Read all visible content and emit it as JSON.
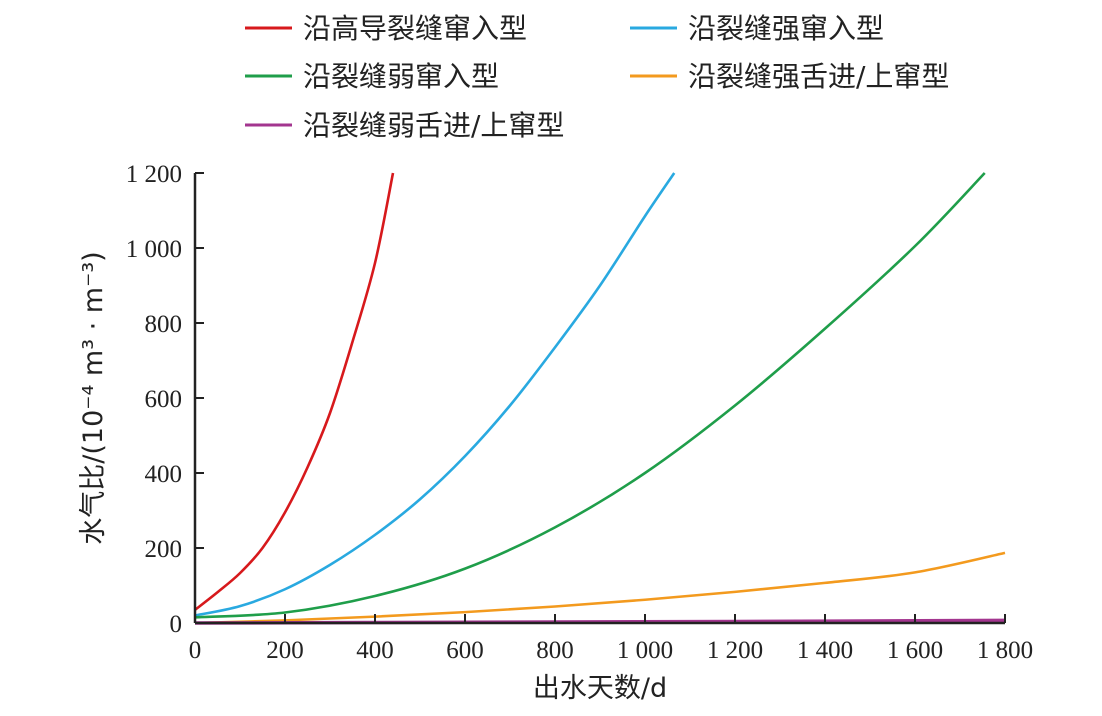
{
  "chart_data": {
    "type": "line",
    "title": "",
    "xlabel": "出水天数/d",
    "ylabel": "水气比/(10⁻⁴ m³ · m⁻³)",
    "xlim": [
      0,
      1800
    ],
    "ylim": [
      0,
      1200
    ],
    "x_ticks": [
      0,
      200,
      400,
      600,
      800,
      1000,
      1200,
      1400,
      1600,
      1800
    ],
    "x_tick_labels": [
      "0",
      "200",
      "400",
      "600",
      "800",
      "1 000",
      "1 200",
      "1 400",
      "1 600",
      "1 800"
    ],
    "y_ticks": [
      0,
      200,
      400,
      600,
      800,
      1000,
      1200
    ],
    "y_tick_labels": [
      "0",
      "200",
      "400",
      "600",
      "800",
      "1 000",
      "1 200"
    ],
    "grid": false,
    "legend_position": "top",
    "series": [
      {
        "name": "沿高导裂缝窜入型",
        "color": "#d7191c",
        "x": [
          0,
          50,
          100,
          150,
          200,
          250,
          300,
          350,
          400,
          440
        ],
        "y": [
          35,
          82,
          133,
          200,
          295,
          415,
          560,
          750,
          960,
          1200
        ]
      },
      {
        "name": "沿裂缝强窜入型",
        "color": "#29a9e0",
        "x": [
          0,
          100,
          200,
          300,
          400,
          500,
          600,
          700,
          800,
          900,
          1000,
          1065
        ],
        "y": [
          20,
          45,
          90,
          155,
          235,
          330,
          445,
          580,
          735,
          900,
          1085,
          1200
        ]
      },
      {
        "name": "沿裂缝弱窜入型",
        "color": "#1f9e4a",
        "x": [
          0,
          200,
          400,
          600,
          800,
          1000,
          1200,
          1400,
          1600,
          1755
        ],
        "y": [
          15,
          28,
          72,
          145,
          255,
          400,
          580,
          785,
          1005,
          1200
        ]
      },
      {
        "name": "沿裂缝强舌进/上窜型",
        "color": "#f39a1e",
        "x": [
          0,
          200,
          400,
          600,
          800,
          1000,
          1200,
          1400,
          1600,
          1800
        ],
        "y": [
          0,
          7,
          17,
          29,
          44,
          62,
          83,
          107,
          135,
          187
        ]
      },
      {
        "name": "沿裂缝弱舌进/上窜型",
        "color": "#a3358f",
        "x": [
          0,
          600,
          1200,
          1800
        ],
        "y": [
          0,
          2,
          4,
          7
        ]
      }
    ]
  }
}
